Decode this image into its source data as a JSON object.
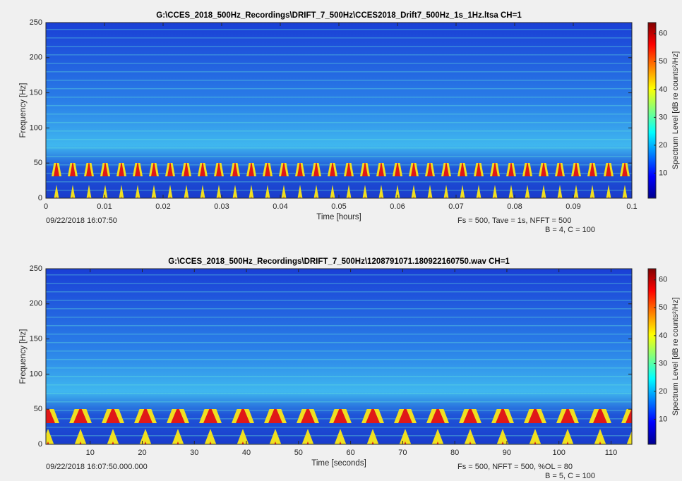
{
  "chart_data": [
    {
      "type": "spectrogram",
      "title": "G:\\CCES_2018_500Hz_Recordings\\DRIFT_7_500Hz\\CCES2018_Drift7_500Hz_1s_1Hz.ltsa CH=1",
      "xlabel": "Time [hours]",
      "ylabel": "Frequency [Hz]",
      "xlim": [
        0,
        0.1
      ],
      "xticks": [
        0,
        0.01,
        0.02,
        0.03,
        0.04,
        0.05,
        0.06,
        0.07,
        0.08,
        0.09,
        0.1
      ],
      "ylim": [
        0,
        250
      ],
      "yticks": [
        0,
        50,
        100,
        150,
        200,
        250
      ],
      "colorbar_label": "Spectrum Level [dB re counts²/Hz]",
      "clim": [
        1,
        64
      ],
      "cticks": [
        10,
        20,
        30,
        40,
        50,
        60
      ],
      "annotations": [
        "09/22/2018 16:07:50",
        "Fs = 500, Tave = 1s, NFFT = 500",
        "B = 4, C = 100"
      ]
    },
    {
      "type": "spectrogram",
      "title": "G:\\CCES_2018_500Hz_Recordings\\DRIFT_7_500Hz\\1208791071.180922160750.wav CH=1",
      "xlabel": "Time [seconds]",
      "ylabel": "Frequency [Hz]",
      "xlim": [
        1.5,
        114
      ],
      "xticks": [
        10,
        20,
        30,
        40,
        50,
        60,
        70,
        80,
        90,
        100,
        110
      ],
      "ylim": [
        0,
        250
      ],
      "yticks": [
        0,
        50,
        100,
        150,
        200,
        250
      ],
      "colorbar_label": "Spectrum Level [dB re counts²/Hz]",
      "clim": [
        1,
        64
      ],
      "cticks": [
        10,
        20,
        30,
        40,
        50,
        60
      ],
      "annotations": [
        "09/22/2018 16:07:50.000.000",
        "Fs = 500, NFFT = 500, %OL = 80",
        "B = 5, C = 100"
      ]
    }
  ]
}
